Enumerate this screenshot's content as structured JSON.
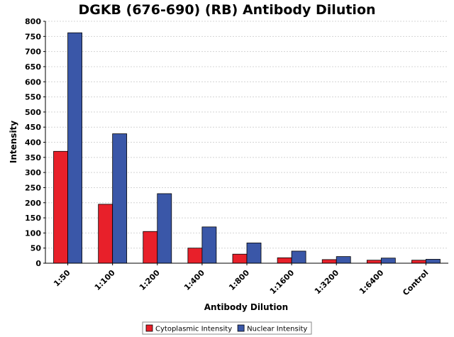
{
  "chart_data": {
    "type": "bar",
    "title": "DGKB (676-690) (RB) Antibody Dilution",
    "xlabel": "Antibody Dilution",
    "ylabel": "Intensity",
    "ylim": [
      0,
      800
    ],
    "yticks": [
      0,
      50,
      100,
      150,
      200,
      250,
      300,
      350,
      400,
      450,
      500,
      550,
      600,
      650,
      700,
      750,
      800
    ],
    "categories": [
      "1:50",
      "1:100",
      "1:200",
      "1:400",
      "1:800",
      "1:1600",
      "1:3200",
      "1:6400",
      "Control"
    ],
    "series": [
      {
        "name": "Cytoplasmic Intensity",
        "color": "#e8202a",
        "values": [
          370,
          195,
          105,
          50,
          30,
          18,
          12,
          10,
          10
        ]
      },
      {
        "name": "Nuclear Intensity",
        "color": "#3a57a8",
        "values": [
          762,
          428,
          230,
          120,
          67,
          40,
          22,
          17,
          13
        ]
      }
    ],
    "grid": true,
    "legend_position": "bottom-center"
  }
}
